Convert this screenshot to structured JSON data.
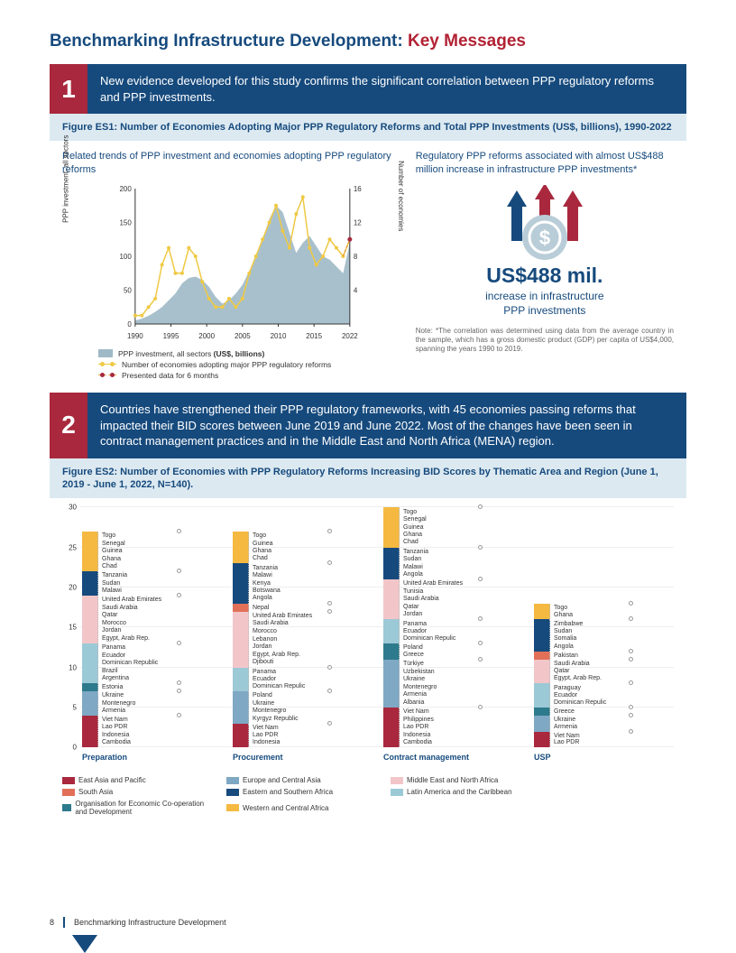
{
  "page_title": {
    "part1": "Benchmarking Infrastructure Development:",
    "part2": " Key Messages"
  },
  "colors": {
    "navy": "#164a7d",
    "red": "#a9283d",
    "lightblue": "#dce9f1",
    "area": "#9fb9c7",
    "yellow": "#efc944",
    "yellow_dash": "#e8a13a"
  },
  "msg1": {
    "num": "1",
    "text": "New evidence developed for this study confirms the significant correlation between PPP regulatory reforms and PPP investments.",
    "fig_title": "Figure ES1: Number of Economies Adopting Major PPP Regulatory Reforms and Total PPP Investments (US$, billions), 1990-2022",
    "left_title": "Related trends of PPP investment and economies adopting PPP regulatory reforms",
    "y1_label": "PPP investment, all sectors",
    "y2_label": "Number of economies",
    "y1_max": 200,
    "y1_ticks": [
      0,
      50,
      100,
      150,
      200
    ],
    "y2_max": 16,
    "y2_ticks": [
      4,
      8,
      12,
      16
    ],
    "x_ticks": [
      "1990",
      "1995",
      "2000",
      "2005",
      "2010",
      "2015",
      "2022"
    ],
    "invest": [
      5,
      8,
      12,
      18,
      25,
      35,
      45,
      60,
      68,
      70,
      65,
      55,
      40,
      30,
      35,
      45,
      58,
      78,
      100,
      125,
      155,
      175,
      165,
      135,
      105,
      120,
      130,
      115,
      100,
      95,
      85,
      75,
      120
    ],
    "econ": [
      1,
      1,
      2,
      3,
      7,
      9,
      6,
      6,
      9,
      8,
      5,
      3,
      2,
      2,
      3,
      2,
      3,
      6,
      8,
      10,
      12,
      14,
      11,
      9,
      13,
      15,
      9,
      7,
      8,
      10,
      9,
      8,
      10
    ],
    "legend": {
      "a": "PPP investment, all sectors (US$, billions)",
      "b": "Number of economies adopting major PPP regulatory reforms",
      "c": "Presented data for 6 months"
    },
    "right_title": "Regulatory PPP reforms associated with almost US$488 million increase in infrastructure PPP investments*",
    "big_num": "US$488 mil.",
    "big_sub1": "increase in infrastructure",
    "big_sub2": "PPP investments",
    "note": "Note: *The correlation was determined using data from the average country in the sample, which has a gross domestic product (GDP) per capita of US$4,000, spanning the years 1990 to 2019."
  },
  "msg2": {
    "num": "2",
    "text": "Countries have strengthened their PPP regulatory frameworks, with 45 economies passing reforms that impacted their BID scores between June 2019 and June 2022. Most of the changes have been seen in contract management practices and in the Middle East and North Africa (MENA) region.",
    "fig_title": "Figure ES2: Number of Economies with PPP Regulatory Reforms Increasing BID Scores by Thematic Area and Region (June 1, 2019 - June 1, 2022, N=140).",
    "y_max": 30,
    "y_ticks": [
      0,
      5,
      10,
      15,
      20,
      25,
      30
    ],
    "regions": {
      "eap": {
        "name": "East Asia and Pacific",
        "color": "#a9283d"
      },
      "eca": {
        "name": "Europe and Central Asia",
        "color": "#7ea8c4"
      },
      "mena": {
        "name": "Middle East and North Africa",
        "color": "#f2c6c9"
      },
      "sa": {
        "name": "South Asia",
        "color": "#e27059"
      },
      "esa": {
        "name": "Eastern and Southern Africa",
        "color": "#164a7d"
      },
      "lac": {
        "name": "Latin America and the Caribbean",
        "color": "#9cc9d6"
      },
      "oecd": {
        "name": "Organisation for Economic Co-operation and Development",
        "color": "#2d7a8c"
      },
      "wca": {
        "name": "Western and Central Africa",
        "color": "#f5b942"
      }
    },
    "columns": [
      {
        "name": "Preparation",
        "segs": [
          {
            "r": "eap",
            "items": [
              "Viet Nam",
              "Lao PDR",
              "Indonesia",
              "Cambodia"
            ]
          },
          {
            "r": "eca",
            "items": [
              "Ukraine",
              "Montenegro",
              "Armenia"
            ]
          },
          {
            "r": "oecd",
            "items": [
              "Estonia"
            ]
          },
          {
            "r": "lac",
            "items": [
              "Panama",
              "Ecuador",
              "Dominican Republic",
              "Brazil",
              "Argentina"
            ]
          },
          {
            "r": "mena",
            "items": [
              "United Arab Emirates",
              "Saudi Arabia",
              "Qatar",
              "Morocco",
              "Jordan",
              "Egypt, Arab Rep."
            ]
          },
          {
            "r": "esa",
            "items": [
              "Tanzania",
              "Sudan",
              "Malawi"
            ]
          },
          {
            "r": "wca",
            "items": [
              "Togo",
              "Senegal",
              "Guinea",
              "Ghana",
              "Chad"
            ]
          }
        ]
      },
      {
        "name": "Procurement",
        "segs": [
          {
            "r": "eap",
            "items": [
              "Viet Nam",
              "Lao PDR",
              "Indonesia"
            ]
          },
          {
            "r": "eca",
            "items": [
              "Poland",
              "Ukraine",
              "Montenegro",
              "Kyrgyz Republic"
            ]
          },
          {
            "r": "lac",
            "items": [
              "Panama",
              "Ecuador",
              "Dominican Repulic"
            ]
          },
          {
            "r": "mena",
            "items": [
              "United Arab Emirates",
              "Saudi Arabia",
              "Morocco",
              "Lebanon",
              "Jordan",
              "Egypt, Arab Rep.",
              "Djibouti"
            ]
          },
          {
            "r": "sa",
            "items": [
              "Nepal"
            ]
          },
          {
            "r": "esa",
            "items": [
              "Tanzania",
              "Malawi",
              "Kenya",
              "Botswana",
              "Angola"
            ]
          },
          {
            "r": "wca",
            "items": [
              "Togo",
              "Guinea",
              "Ghana",
              "Chad"
            ]
          }
        ]
      },
      {
        "name": "Contract management",
        "segs": [
          {
            "r": "eap",
            "items": [
              "Viet Nam",
              "Philippines",
              "Lao PDR",
              "Indonesia",
              "Cambodia"
            ]
          },
          {
            "r": "eca",
            "items": [
              "Türkiye",
              "Uzbekistan",
              "Ukraine",
              "Montenegro",
              "Armenia",
              "Albania"
            ]
          },
          {
            "r": "oecd",
            "items": [
              "Poland",
              "Greece"
            ]
          },
          {
            "r": "lac",
            "items": [
              "Panama",
              "Ecuador",
              "Dominican Repulic"
            ]
          },
          {
            "r": "mena",
            "items": [
              "United Arab Emirates",
              "Tunisia",
              "Saudi Arabia",
              "Qatar",
              "Jordan"
            ]
          },
          {
            "r": "esa",
            "items": [
              "Tanzania",
              "Sudan",
              "Malawi",
              "Angola"
            ]
          },
          {
            "r": "wca",
            "items": [
              "Togo",
              "Senegal",
              "Guinea",
              "Ghana",
              "Chad"
            ]
          }
        ]
      },
      {
        "name": "USP",
        "segs": [
          {
            "r": "eap",
            "items": [
              "Viet Nam",
              "Lao PDR"
            ]
          },
          {
            "r": "eca",
            "items": [
              "Ukraine",
              "Armenia"
            ]
          },
          {
            "r": "oecd",
            "items": [
              "Greece"
            ]
          },
          {
            "r": "lac",
            "items": [
              "Paraguay",
              "Ecuador",
              "Dominican Repulic"
            ]
          },
          {
            "r": "mena",
            "items": [
              "Saudi Arabia",
              "Qatar",
              "Egypt, Arab Rep."
            ]
          },
          {
            "r": "sa",
            "items": [
              "Pakistan"
            ]
          },
          {
            "r": "esa",
            "items": [
              "Zimbabwe",
              "Sudan",
              "Somalia",
              "Angola"
            ]
          },
          {
            "r": "wca",
            "items": [
              "Togo",
              "Ghana"
            ]
          }
        ]
      }
    ]
  },
  "footer": {
    "page_num": "8",
    "text": "Benchmarking Infrastructure Development"
  }
}
